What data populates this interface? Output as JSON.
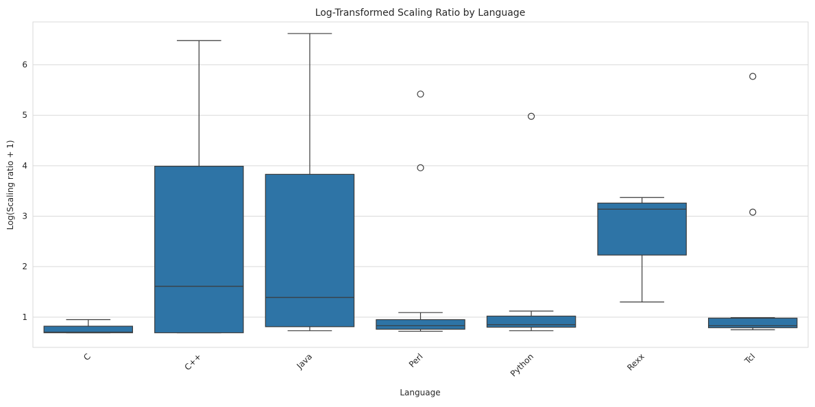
{
  "chart_data": {
    "type": "box",
    "title": "Log-Transformed Scaling Ratio by Language",
    "xlabel": "Language",
    "ylabel": "Log(Scaling ratio + 1)",
    "ylim": [
      0.4,
      6.85
    ],
    "yticks": [
      1,
      2,
      3,
      4,
      5,
      6
    ],
    "grid": "horizontal",
    "legend": "none",
    "box_color": "#2e74a6",
    "line_color": "#3a3a3a",
    "grid_color": "#d9d9d9",
    "categories": [
      "C",
      "C++",
      "Java",
      "Perl",
      "Python",
      "Rexx",
      "Tcl"
    ],
    "boxes": [
      {
        "category": "C",
        "whisker_low": 0.69,
        "q1": 0.69,
        "median": 0.7,
        "q3": 0.82,
        "whisker_high": 0.95,
        "outliers": []
      },
      {
        "category": "C++",
        "whisker_low": 0.69,
        "q1": 0.69,
        "median": 1.61,
        "q3": 3.99,
        "whisker_high": 6.48,
        "outliers": []
      },
      {
        "category": "Java",
        "whisker_low": 0.73,
        "q1": 0.81,
        "median": 1.39,
        "q3": 3.83,
        "whisker_high": 6.62,
        "outliers": []
      },
      {
        "category": "Perl",
        "whisker_low": 0.72,
        "q1": 0.76,
        "median": 0.83,
        "q3": 0.95,
        "whisker_high": 1.09,
        "outliers": [
          3.96,
          5.42
        ]
      },
      {
        "category": "Python",
        "whisker_low": 0.73,
        "q1": 0.8,
        "median": 0.85,
        "q3": 1.02,
        "whisker_high": 1.12,
        "outliers": [
          4.98
        ]
      },
      {
        "category": "Rexx",
        "whisker_low": 1.3,
        "q1": 2.23,
        "median": 3.14,
        "q3": 3.26,
        "whisker_high": 3.37,
        "outliers": []
      },
      {
        "category": "Tcl",
        "whisker_low": 0.75,
        "q1": 0.79,
        "median": 0.83,
        "q3": 0.98,
        "whisker_high": 0.99,
        "outliers": [
          3.08,
          5.77
        ]
      }
    ]
  }
}
